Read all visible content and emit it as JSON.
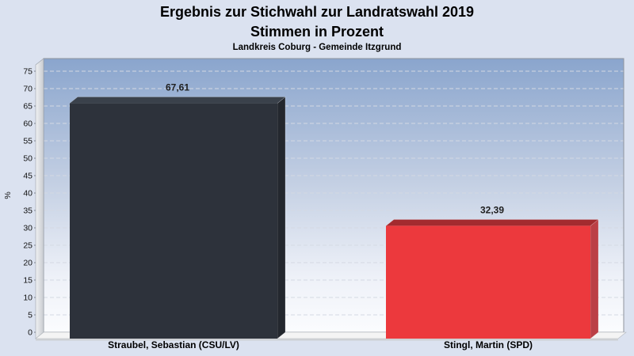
{
  "header": {
    "title_line1": "Ergebnis zur Stichwahl zur Landratswahl 2019",
    "title_line2": "Stimmen in Prozent",
    "subtitle": "Landkreis Coburg - Gemeinde Itzgrund"
  },
  "chart_data": {
    "type": "bar",
    "projection": "3d",
    "title": "Ergebnis zur Stichwahl zur Landratswahl 2019 - Stimmen in Prozent",
    "subtitle": "Landkreis Coburg - Gemeinde Itzgrund",
    "categories": [
      "Straubel, Sebastian (CSU/LV)",
      "Stingl, Martin (SPD)"
    ],
    "values": [
      67.61,
      32.39
    ],
    "value_labels": [
      "67,61",
      "32,39"
    ],
    "xlabel": "",
    "ylabel": "%",
    "ylim": [
      0,
      75
    ],
    "ytick_step": 5,
    "grid": "horizontal-dashed",
    "legend": "none",
    "colors": {
      "page_bg": "#dbe2f0",
      "plot_bg_top": "#8aa5cd",
      "plot_bg_mid": "#c3cfe3",
      "plot_bg_bottom": "#fbfcfe",
      "gridline": "#d4d9e3",
      "wall": "#dfe1e5",
      "floor": "#f4f4f4",
      "bars": [
        {
          "front": "#2d323b",
          "top": "#3a414b",
          "side": "#23272e"
        },
        {
          "front": "#ec393d",
          "top": "#a32b2f",
          "side": "#bb4046"
        }
      ]
    }
  }
}
